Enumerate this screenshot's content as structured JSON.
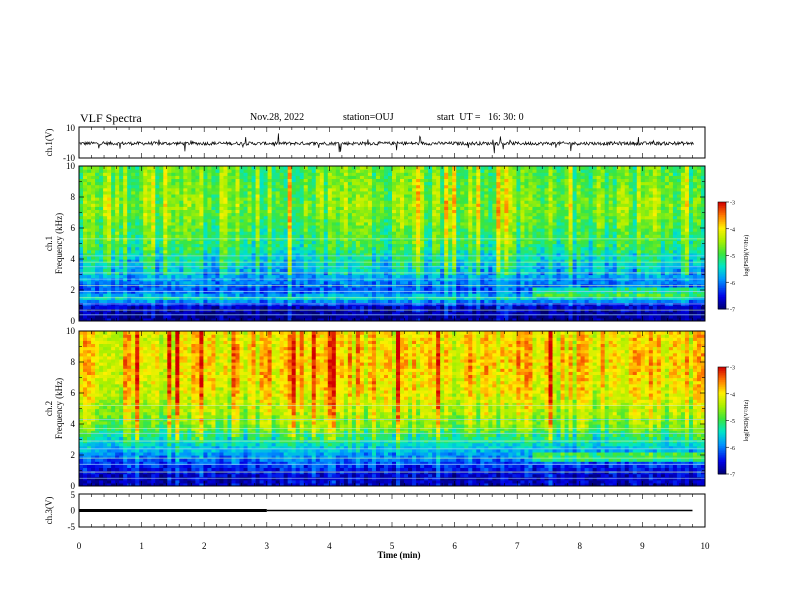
{
  "header": {
    "title": "VLF Spectra",
    "date": "Nov.28, 2022",
    "station": "station=OUJ",
    "start": "start  UT =   16: 30: 0"
  },
  "chart_data": [
    {
      "type": "line",
      "panel": "ch1-waveform",
      "ylabel": "ch.1(V)",
      "ylim": [
        -10,
        10
      ],
      "yticks": [
        "10",
        "-10"
      ],
      "xlim": [
        0,
        10
      ],
      "note_series": "noisy waveform near -0.5 V with impulsive spikes"
    },
    {
      "type": "heatmap",
      "panel": "ch1-spectrogram",
      "ylabel": "ch.1\nFrequency  (kHz)",
      "ylim": [
        0,
        10
      ],
      "yticks": [
        "0",
        "2",
        "4",
        "6",
        "8",
        "10"
      ],
      "xlim": [
        0,
        10
      ],
      "colorbar": {
        "label": "log(PSD)(V²/Hz)",
        "range": [
          -7,
          -3
        ],
        "ticks": [
          "-3",
          "-4",
          "-5",
          "-6",
          "-7"
        ]
      },
      "bands_khz": [
        {
          "freq": 0.3,
          "level": -6.9
        },
        {
          "freq": 0.6,
          "level": -6.8
        },
        {
          "freq": 1.0,
          "level": -6.6
        },
        {
          "freq": 1.5,
          "level": -5.5
        },
        {
          "freq": 2.0,
          "level": -6.2
        },
        {
          "freq": 2.6,
          "level": -5.9
        },
        {
          "freq": 3.3,
          "level": -5.6
        },
        {
          "freq": 5.0,
          "level": -5.0
        },
        {
          "freq": 7.5,
          "level": -4.6
        },
        {
          "freq": 9.5,
          "level": -4.8
        }
      ]
    },
    {
      "type": "heatmap",
      "panel": "ch2-spectrogram",
      "ylabel": "ch.2\nFrequency  (kHz)",
      "ylim": [
        0,
        10
      ],
      "yticks": [
        "0",
        "2",
        "4",
        "6",
        "8",
        "10"
      ],
      "xlim": [
        0,
        10
      ],
      "colorbar": {
        "label": "log(PSD)(V²/Hz)",
        "range": [
          -7,
          -3
        ],
        "ticks": [
          "-3",
          "-4",
          "-5",
          "-6",
          "-7"
        ]
      },
      "bands_khz": [
        {
          "freq": 0.5,
          "level": -6.7
        },
        {
          "freq": 1.2,
          "level": -6.4
        },
        {
          "freq": 2.0,
          "level": -5.9
        },
        {
          "freq": 3.0,
          "level": -5.3
        },
        {
          "freq": 4.0,
          "level": -4.6
        },
        {
          "freq": 6.0,
          "level": -4.1
        },
        {
          "freq": 8.0,
          "level": -3.9
        },
        {
          "freq": 9.5,
          "level": -4.0
        }
      ]
    },
    {
      "type": "line",
      "panel": "ch3-waveform",
      "ylabel": "ch.3(V)",
      "ylim": [
        -5,
        5
      ],
      "yticks": [
        "5",
        "0",
        "-5"
      ],
      "xlim": [
        0,
        10
      ],
      "series": [
        {
          "x": [
            0,
            3
          ],
          "y": [
            0,
            0
          ],
          "thick": true
        },
        {
          "x": [
            3,
            9.8
          ],
          "y": [
            0,
            0
          ],
          "thick": false
        }
      ],
      "xlabel": "Time  (min)",
      "xticks": [
        "0",
        "1",
        "2",
        "3",
        "4",
        "5",
        "6",
        "7",
        "8",
        "9",
        "10"
      ]
    }
  ]
}
